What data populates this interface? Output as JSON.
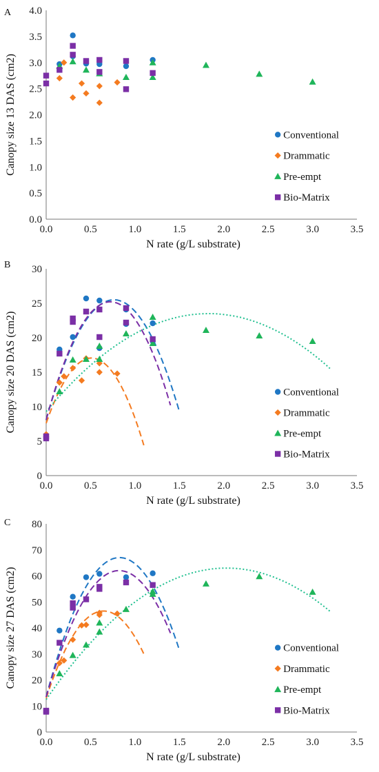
{
  "colors": {
    "Conventional": "#1f77c4",
    "Drammatic": "#f47b20",
    "Pre-empt": "#1fb55a",
    "Bio-Matrix": "#7b2fa6",
    "Pre-empt-line": "#1fbf8f"
  },
  "chart_data": [
    {
      "type": "scatter",
      "panel_label": "A",
      "xlabel": "N rate (g/L substrate)",
      "ylabel": "Canopy size 13 DAS (cm2)",
      "xlim": [
        0,
        3.5
      ],
      "ylim": [
        0,
        4
      ],
      "xticks": [
        "0.0",
        "0.5",
        "1.0",
        "1.5",
        "2.0",
        "2.5",
        "3.0",
        "3.5"
      ],
      "yticks": [
        "0.0",
        "0.5",
        "1.0",
        "1.5",
        "2.0",
        "2.5",
        "3.0",
        "3.5",
        "4.0"
      ],
      "legend_position": "bottom-right",
      "grid": false,
      "series": [
        {
          "name": "Conventional",
          "marker": "circle",
          "points": [
            [
              0.15,
              2.97
            ],
            [
              0.3,
              3.52
            ],
            [
              0.3,
              3.12
            ],
            [
              0.45,
              2.98
            ],
            [
              0.6,
              2.97
            ],
            [
              0.9,
              2.93
            ],
            [
              1.2,
              3.05
            ]
          ]
        },
        {
          "name": "Drammatic",
          "marker": "diamond",
          "points": [
            [
              0.15,
              2.7
            ],
            [
              0.2,
              3.0
            ],
            [
              0.3,
              2.33
            ],
            [
              0.4,
              2.6
            ],
            [
              0.45,
              2.41
            ],
            [
              0.6,
              2.55
            ],
            [
              0.6,
              2.23
            ],
            [
              0.8,
              2.62
            ]
          ]
        },
        {
          "name": "Pre-empt",
          "marker": "triangle",
          "points": [
            [
              0.15,
              2.93
            ],
            [
              0.3,
              3.02
            ],
            [
              0.45,
              2.86
            ],
            [
              0.6,
              2.79
            ],
            [
              0.9,
              2.72
            ],
            [
              1.2,
              2.72
            ],
            [
              1.2,
              3.0
            ],
            [
              1.8,
              2.95
            ],
            [
              2.4,
              2.78
            ],
            [
              3.0,
              2.63
            ]
          ]
        },
        {
          "name": "Bio-Matrix",
          "marker": "square",
          "points": [
            [
              0.0,
              2.75
            ],
            [
              0.0,
              2.6
            ],
            [
              0.15,
              2.86
            ],
            [
              0.3,
              3.32
            ],
            [
              0.3,
              3.15
            ],
            [
              0.45,
              3.03
            ],
            [
              0.6,
              3.05
            ],
            [
              0.6,
              2.82
            ],
            [
              0.9,
              3.03
            ],
            [
              0.9,
              2.49
            ],
            [
              1.2,
              2.8
            ]
          ]
        }
      ],
      "trendlines": []
    },
    {
      "type": "scatter",
      "panel_label": "B",
      "xlabel": "N rate (g/L substrate)",
      "ylabel": "Canopy size 20 DAS (cm2)",
      "xlim": [
        0,
        3.5
      ],
      "ylim": [
        0,
        30
      ],
      "xticks": [
        "0.0",
        "0.5",
        "1.0",
        "1.5",
        "2.0",
        "2.5",
        "3.0",
        "3.5"
      ],
      "yticks": [
        "0",
        "5",
        "10",
        "15",
        "20",
        "25",
        "30"
      ],
      "legend_position": "bottom-right",
      "grid": false,
      "series": [
        {
          "name": "Conventional",
          "marker": "circle",
          "points": [
            [
              0.15,
              18.3
            ],
            [
              0.3,
              20.1
            ],
            [
              0.45,
              25.7
            ],
            [
              0.6,
              25.4
            ],
            [
              0.6,
              18.5
            ],
            [
              0.9,
              24.1
            ],
            [
              0.9,
              22.0
            ],
            [
              1.2,
              22.1
            ],
            [
              1.2,
              19.5
            ]
          ]
        },
        {
          "name": "Drammatic",
          "marker": "diamond",
          "points": [
            [
              0.0,
              6.0
            ],
            [
              0.15,
              13.5
            ],
            [
              0.2,
              14.4
            ],
            [
              0.3,
              15.6
            ],
            [
              0.4,
              13.8
            ],
            [
              0.45,
              17.0
            ],
            [
              0.6,
              16.3
            ],
            [
              0.6,
              15.0
            ],
            [
              0.8,
              14.8
            ]
          ]
        },
        {
          "name": "Pre-empt",
          "marker": "triangle",
          "points": [
            [
              0.15,
              12.2
            ],
            [
              0.3,
              16.8
            ],
            [
              0.45,
              16.9
            ],
            [
              0.6,
              18.8
            ],
            [
              0.6,
              16.9
            ],
            [
              0.9,
              20.6
            ],
            [
              1.2,
              23.0
            ],
            [
              1.2,
              19.2
            ],
            [
              1.8,
              21.1
            ],
            [
              2.4,
              20.3
            ],
            [
              3.0,
              19.5
            ]
          ]
        },
        {
          "name": "Bio-Matrix",
          "marker": "square",
          "points": [
            [
              0.0,
              5.7
            ],
            [
              0.0,
              5.4
            ],
            [
              0.15,
              17.7
            ],
            [
              0.3,
              22.8
            ],
            [
              0.3,
              22.3
            ],
            [
              0.45,
              23.8
            ],
            [
              0.6,
              24.1
            ],
            [
              0.6,
              20.1
            ],
            [
              0.9,
              24.3
            ],
            [
              0.9,
              22.2
            ],
            [
              1.2,
              19.8
            ]
          ]
        }
      ],
      "trendlines": [
        {
          "series": "Conventional",
          "style": "dashed",
          "x_range": [
            0,
            1.5
          ],
          "points": [
            [
              0,
              8.1
            ],
            [
              0.75,
              25.5
            ],
            [
              1.5,
              9.3
            ]
          ]
        },
        {
          "series": "Drammatic",
          "style": "dashed",
          "x_range": [
            0,
            1.1
          ],
          "points": [
            [
              0,
              7.6
            ],
            [
              0.55,
              17.0
            ],
            [
              1.1,
              4.4
            ]
          ]
        },
        {
          "series": "Pre-empt",
          "style": "dotted",
          "x_range": [
            0,
            3.2
          ],
          "points": [
            [
              0,
              9.3
            ],
            [
              1.85,
              23.5
            ],
            [
              3.2,
              15.5
            ]
          ]
        },
        {
          "series": "Bio-Matrix",
          "style": "dashed",
          "x_range": [
            0,
            1.4
          ],
          "points": [
            [
              0,
              8.1
            ],
            [
              0.7,
              25.2
            ],
            [
              1.4,
              10.2
            ]
          ]
        }
      ]
    },
    {
      "type": "scatter",
      "panel_label": "C",
      "xlabel": "N rate (g/L substrate)",
      "ylabel": "Canopy size 27 DAS (cm2)",
      "xlim": [
        0,
        3.5
      ],
      "ylim": [
        0,
        80
      ],
      "xticks": [
        "0.0",
        "0.5",
        "1.0",
        "1.5",
        "2.0",
        "2.5",
        "3.0",
        "3.5"
      ],
      "yticks": [
        "0",
        "10",
        "20",
        "30",
        "40",
        "50",
        "60",
        "70",
        "80"
      ],
      "legend_position": "bottom-right",
      "grid": false,
      "series": [
        {
          "name": "Conventional",
          "marker": "circle",
          "points": [
            [
              0.15,
              39.0
            ],
            [
              0.3,
              52.0
            ],
            [
              0.45,
              59.5
            ],
            [
              0.6,
              60.8
            ],
            [
              0.9,
              59.5
            ],
            [
              1.2,
              61.0
            ]
          ]
        },
        {
          "name": "Drammatic",
          "marker": "diamond",
          "points": [
            [
              0.15,
              26.5
            ],
            [
              0.2,
              27.5
            ],
            [
              0.3,
              35.5
            ],
            [
              0.4,
              41.0
            ],
            [
              0.45,
              41.2
            ],
            [
              0.6,
              45.0
            ],
            [
              0.6,
              45.8
            ],
            [
              0.8,
              45.5
            ]
          ]
        },
        {
          "name": "Pre-empt",
          "marker": "triangle",
          "points": [
            [
              0.15,
              22.5
            ],
            [
              0.3,
              29.5
            ],
            [
              0.45,
              33.5
            ],
            [
              0.6,
              38.5
            ],
            [
              0.6,
              42.0
            ],
            [
              0.9,
              47.2
            ],
            [
              1.2,
              53.0
            ],
            [
              1.2,
              54.0
            ],
            [
              1.8,
              57.0
            ],
            [
              2.4,
              59.8
            ],
            [
              3.0,
              53.8
            ]
          ]
        },
        {
          "name": "Bio-Matrix",
          "marker": "square",
          "points": [
            [
              0.0,
              8.2
            ],
            [
              0.0,
              7.8
            ],
            [
              0.15,
              34.3
            ],
            [
              0.3,
              49.5
            ],
            [
              0.3,
              47.8
            ],
            [
              0.45,
              51.0
            ],
            [
              0.6,
              55.8
            ],
            [
              0.6,
              55.0
            ],
            [
              0.9,
              57.5
            ],
            [
              1.2,
              56.5
            ]
          ]
        }
      ],
      "trendlines": [
        {
          "series": "Conventional",
          "style": "dashed",
          "x_range": [
            0,
            1.5
          ],
          "points": [
            [
              0,
              13.5
            ],
            [
              0.85,
              67.0
            ],
            [
              1.5,
              31.5
            ]
          ]
        },
        {
          "series": "Drammatic",
          "style": "dashed",
          "x_range": [
            0,
            1.1
          ],
          "points": [
            [
              0,
              13.0
            ],
            [
              0.65,
              46.5
            ],
            [
              1.1,
              30.0
            ]
          ]
        },
        {
          "series": "Pre-empt",
          "style": "dotted",
          "x_range": [
            0,
            3.2
          ],
          "points": [
            [
              0,
              12.5
            ],
            [
              2.05,
              63.0
            ],
            [
              3.2,
              46.3
            ]
          ]
        },
        {
          "series": "Bio-Matrix",
          "style": "dashed",
          "x_range": [
            0,
            1.4
          ],
          "points": [
            [
              0,
              13.5
            ],
            [
              0.8,
              62.0
            ],
            [
              1.4,
              38.0
            ]
          ]
        }
      ]
    }
  ]
}
